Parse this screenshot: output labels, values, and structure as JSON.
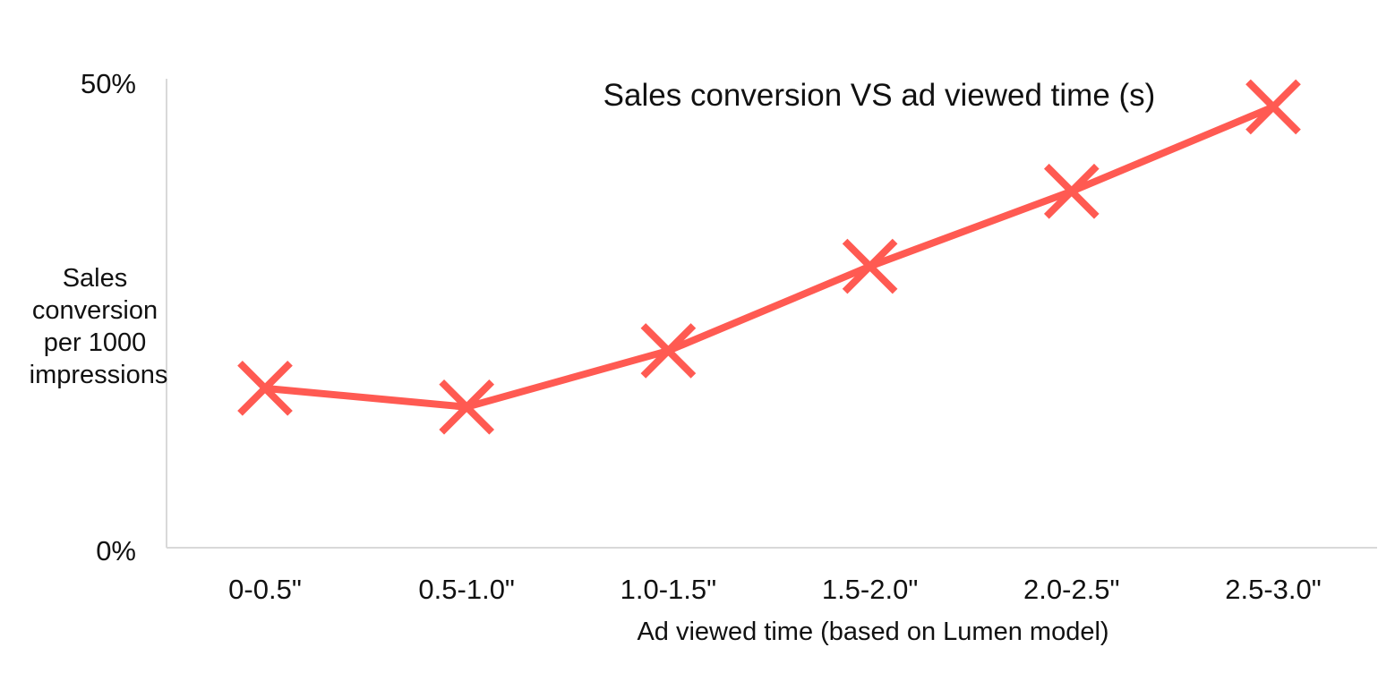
{
  "chart_data": {
    "type": "line",
    "title": "Sales conversion VS ad viewed time (s)",
    "xlabel": "Ad viewed time (based on Lumen model)",
    "ylabel": [
      "Sales",
      "conversion",
      "per 1000",
      "impressions"
    ],
    "categories": [
      "0-0.5\"",
      "0.5-1.0\"",
      "1.0-1.5\"",
      "1.5-2.0\"",
      "2.0-2.5\"",
      "2.5-3.0\""
    ],
    "y_tick_labels": [
      "50%",
      "0%"
    ],
    "ylim": [
      0,
      50
    ],
    "grid": false,
    "legend": "none",
    "series": [
      {
        "values": [
          17,
          15,
          21,
          30,
          38,
          47
        ],
        "color": "#FF5A52",
        "marker": "x"
      }
    ]
  }
}
